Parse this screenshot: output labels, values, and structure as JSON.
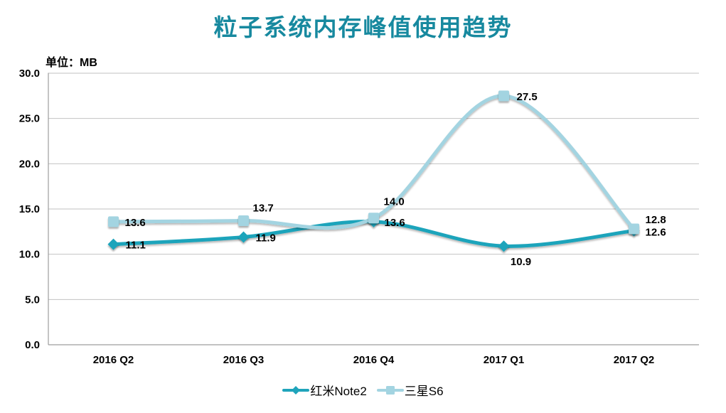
{
  "title": "粒子系统内存峰值使用趋势",
  "title_color": "#17899f",
  "unit_label": "单位：MB",
  "chart_data": {
    "type": "line",
    "smooth": true,
    "grid": true,
    "legend_position": "bottom",
    "categories": [
      "2016 Q2",
      "2016 Q3",
      "2016 Q4",
      "2017 Q1",
      "2017 Q2"
    ],
    "ylim": [
      0,
      30
    ],
    "ytick_step": 5,
    "yticks": [
      "0.0",
      "5.0",
      "10.0",
      "15.0",
      "20.0",
      "25.0",
      "30.0"
    ],
    "grid_color": "#c2c2c2",
    "axis_color": "#9d9d9d",
    "series": [
      {
        "name": "红米Note2",
        "color": "#1fa4bb",
        "marker": "diamond",
        "values": [
          11.1,
          11.9,
          13.6,
          10.9,
          12.6
        ],
        "labels": [
          "11.1",
          "11.9",
          "13.6",
          "10.9",
          "12.6"
        ],
        "label_offsets": [
          {
            "dx": 17,
            "dy": 6,
            "anchor": "start"
          },
          {
            "dx": 17,
            "dy": 6,
            "anchor": "start"
          },
          {
            "dx": 15,
            "dy": 6,
            "anchor": "start"
          },
          {
            "dx": 24,
            "dy": 27,
            "anchor": "middle"
          },
          {
            "dx": 16,
            "dy": 7,
            "anchor": "start"
          }
        ]
      },
      {
        "name": "三星S6",
        "color": "#a3d4e1",
        "marker": "square",
        "values": [
          13.6,
          13.7,
          14.0,
          27.5,
          12.8
        ],
        "labels": [
          "13.6",
          "13.7",
          "14.0",
          "27.5",
          "12.8"
        ],
        "label_offsets": [
          {
            "dx": 16,
            "dy": 6,
            "anchor": "start"
          },
          {
            "dx": 13,
            "dy": -13,
            "anchor": "start"
          },
          {
            "dx": 14,
            "dy": -18,
            "anchor": "start"
          },
          {
            "dx": 18,
            "dy": 6,
            "anchor": "start"
          },
          {
            "dx": 16,
            "dy": -8,
            "anchor": "start"
          }
        ]
      }
    ]
  }
}
